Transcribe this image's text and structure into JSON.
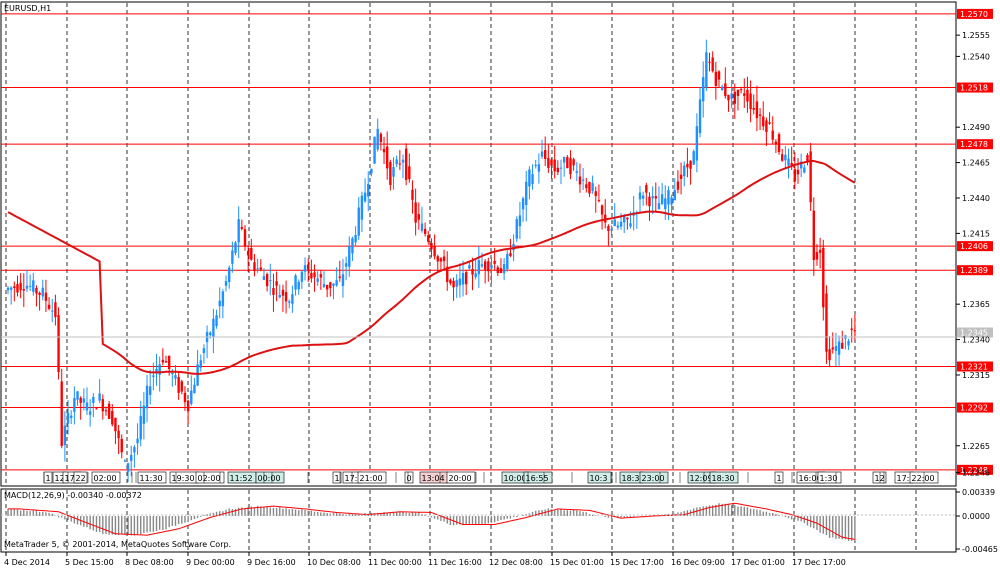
{
  "chart_title": "EURUSD,H1",
  "macd_label": "MACD(12,26,9) -0.00340 -0.00372",
  "copyright": "MetaTrader 5, © 2001-2014, MetaQuotes Software Corp.",
  "colors": {
    "bull": "#1e90ff",
    "bear": "#ff0000",
    "level": "#ff0000",
    "ma": "#dd1111",
    "grid": "#000000",
    "current": "#c0c0c0"
  },
  "price_axis": [
    "1.2555",
    "1.2540",
    "1.2490",
    "1.2465",
    "1.2440",
    "1.2415",
    "1.2365",
    "1.2340",
    "1.2315",
    "1.2265",
    "1.2246"
  ],
  "price_levels": [
    "1.2570",
    "1.2518",
    "1.2478",
    "1.2406",
    "1.2389",
    "1.2321",
    "1.2292",
    "1.2248"
  ],
  "current_price": "1.2345",
  "macd_axis": [
    "0.00339",
    "0.0000",
    "-0.00465"
  ],
  "time_axis": [
    "4 Dec 2014",
    "5 Dec 15:00",
    "8 Dec 08:00",
    "9 Dec 00:00",
    "9 Dec 16:00",
    "10 Dec 08:00",
    "11 Dec 00:00",
    "11 Dec 16:00",
    "12 Dec 08:00",
    "15 Dec 01:00",
    "15 Dec 17:00",
    "16 Dec 09:00",
    "17 Dec 01:00",
    "17 Dec 17:00"
  ],
  "timeline_tags": [
    "1",
    "12",
    "17:",
    "22",
    "02:00",
    "11:30",
    "19:30",
    "02:00",
    "11:52",
    "00:00",
    "1",
    "17:",
    "21:00",
    "0",
    "13:04",
    "20:00",
    "10:00",
    "16:55",
    "10:3",
    "18:3",
    "23:00",
    "12:09",
    "18:30",
    "1",
    "16:00",
    "1:30",
    "12",
    "17:",
    "22:00"
  ],
  "chart_data": {
    "type": "candlestick",
    "title": "EURUSD,H1",
    "y_range": [
      1.2238,
      1.2577
    ],
    "levels": [
      1.257,
      1.2518,
      1.2478,
      1.2406,
      1.2389,
      1.2321,
      1.2292,
      1.2248
    ],
    "current": 1.2345,
    "series_keypoints": [
      [
        0,
        1.2375
      ],
      [
        6,
        1.238
      ],
      [
        12,
        1.2372
      ],
      [
        16,
        1.2358
      ],
      [
        18,
        1.2268
      ],
      [
        22,
        1.23
      ],
      [
        26,
        1.2292
      ],
      [
        30,
        1.2298
      ],
      [
        34,
        1.2285
      ],
      [
        38,
        1.225
      ],
      [
        42,
        1.227
      ],
      [
        46,
        1.2312
      ],
      [
        50,
        1.2328
      ],
      [
        54,
        1.231
      ],
      [
        58,
        1.2295
      ],
      [
        62,
        1.2328
      ],
      [
        66,
        1.2352
      ],
      [
        70,
        1.238
      ],
      [
        74,
        1.242
      ],
      [
        78,
        1.2395
      ],
      [
        82,
        1.2385
      ],
      [
        86,
        1.2375
      ],
      [
        90,
        1.237
      ],
      [
        94,
        1.239
      ],
      [
        98,
        1.2385
      ],
      [
        102,
        1.2378
      ],
      [
        106,
        1.238
      ],
      [
        110,
        1.241
      ],
      [
        114,
        1.2445
      ],
      [
        118,
        1.2488
      ],
      [
        122,
        1.2455
      ],
      [
        126,
        1.247
      ],
      [
        130,
        1.2425
      ],
      [
        134,
        1.2412
      ],
      [
        138,
        1.2395
      ],
      [
        142,
        1.2375
      ],
      [
        146,
        1.2385
      ],
      [
        150,
        1.2392
      ],
      [
        154,
        1.2395
      ],
      [
        158,
        1.2388
      ],
      [
        162,
        1.242
      ],
      [
        166,
        1.2455
      ],
      [
        170,
        1.247
      ],
      [
        174,
        1.246
      ],
      [
        178,
        1.2465
      ],
      [
        182,
        1.2455
      ],
      [
        186,
        1.2445
      ],
      [
        190,
        1.242
      ],
      [
        194,
        1.242
      ],
      [
        198,
        1.2425
      ],
      [
        202,
        1.2445
      ],
      [
        206,
        1.2435
      ],
      [
        210,
        1.244
      ],
      [
        214,
        1.2455
      ],
      [
        218,
        1.247
      ],
      [
        222,
        1.254
      ],
      [
        226,
        1.252
      ],
      [
        230,
        1.251
      ],
      [
        234,
        1.2515
      ],
      [
        238,
        1.25
      ],
      [
        242,
        1.249
      ],
      [
        246,
        1.247
      ],
      [
        250,
        1.2455
      ],
      [
        254,
        1.247
      ],
      [
        256,
        1.24
      ],
      [
        258,
        1.2405
      ],
      [
        260,
        1.233
      ],
      [
        264,
        1.2335
      ],
      [
        268,
        1.2345
      ]
    ],
    "macd_keypoints": [
      [
        0,
        0.001
      ],
      [
        12,
        0.0006
      ],
      [
        20,
        -0.0008
      ],
      [
        30,
        -0.0025
      ],
      [
        40,
        -0.0027
      ],
      [
        50,
        -0.0018
      ],
      [
        60,
        -0.0002
      ],
      [
        70,
        0.001
      ],
      [
        80,
        0.0014
      ],
      [
        90,
        0.001
      ],
      [
        100,
        0.0005
      ],
      [
        110,
        0.0002
      ],
      [
        120,
        0.0006
      ],
      [
        130,
        0.0005
      ],
      [
        140,
        -0.0012
      ],
      [
        150,
        -0.0012
      ],
      [
        160,
        -0.0002
      ],
      [
        170,
        0.001
      ],
      [
        180,
        0.0008
      ],
      [
        190,
        -0.0003
      ],
      [
        200,
        0.0
      ],
      [
        210,
        0.0002
      ],
      [
        218,
        0.0012
      ],
      [
        226,
        0.0018
      ],
      [
        236,
        0.001
      ],
      [
        244,
        0.0002
      ],
      [
        252,
        -0.001
      ],
      [
        260,
        -0.003
      ],
      [
        268,
        -0.0036
      ]
    ]
  }
}
